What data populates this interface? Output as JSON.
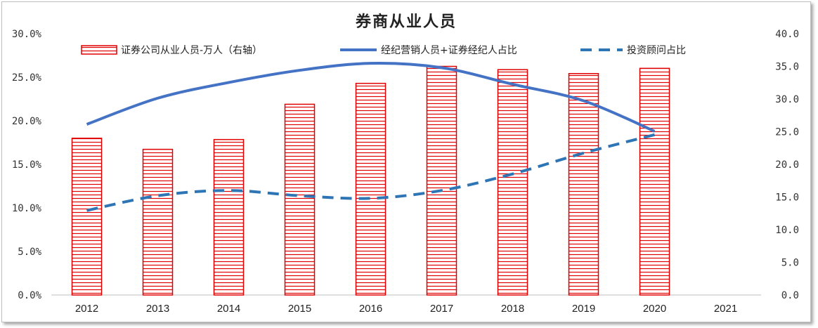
{
  "chart_data": {
    "type": "bar+line",
    "title": "券商从业人员",
    "categories": [
      "2012",
      "2013",
      "2014",
      "2015",
      "2016",
      "2017",
      "2018",
      "2019",
      "2020",
      "2021"
    ],
    "y_left": {
      "ticks": [
        "0.0%",
        "5.0%",
        "10.0%",
        "15.0%",
        "20.0%",
        "25.0%",
        "30.0%"
      ],
      "min": 0,
      "max": 30
    },
    "y_right": {
      "ticks": [
        "0.0",
        "5.0",
        "10.0",
        "15.0",
        "20.0",
        "25.0",
        "30.0",
        "35.0",
        "40.0"
      ],
      "min": 0,
      "max": 40
    },
    "series": [
      {
        "name": "证券公司从业人员-万人（右轴）",
        "type": "bar",
        "axis": "right",
        "color": "#e00000",
        "values": [
          24.0,
          22.3,
          23.8,
          29.2,
          32.4,
          35.0,
          34.5,
          33.9,
          34.7,
          null
        ]
      },
      {
        "name": "经纪营销人员+证券经纪人占比",
        "type": "line",
        "axis": "left",
        "color": "#4472c4",
        "values": [
          19.6,
          22.6,
          24.4,
          25.8,
          26.6,
          26.1,
          24.2,
          22.3,
          18.8,
          null
        ]
      },
      {
        "name": "投资顾问占比",
        "type": "line-dashed",
        "axis": "left",
        "color": "#2e75b6",
        "values": [
          9.7,
          11.4,
          12.0,
          11.4,
          11.1,
          12.0,
          13.9,
          16.3,
          18.4,
          null
        ]
      }
    ],
    "legend_position": "top"
  }
}
